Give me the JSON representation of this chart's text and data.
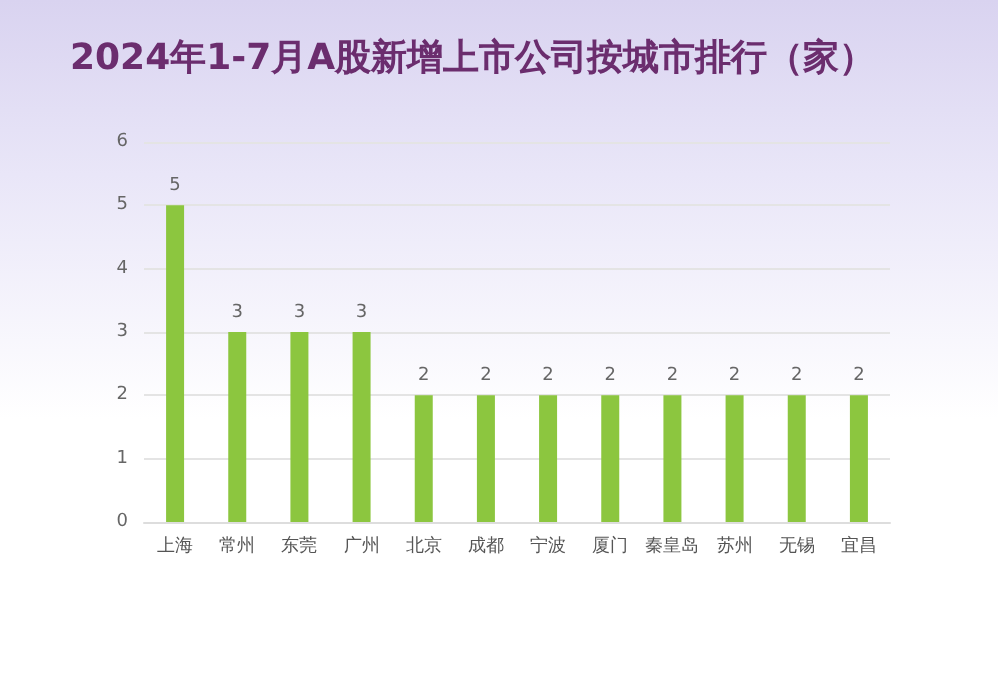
{
  "chart_data": {
    "type": "bar",
    "title": "2024年1-7月A股新增上市公司按城市排行（家）",
    "categories": [
      "上海",
      "常州",
      "东莞",
      "广州",
      "北京",
      "成都",
      "宁波",
      "厦门",
      "秦皇岛",
      "苏州",
      "无锡",
      "宜昌"
    ],
    "values": [
      5,
      3,
      3,
      3,
      2,
      2,
      2,
      2,
      2,
      2,
      2,
      2
    ],
    "color": "#8cc63f",
    "ylim": [
      0,
      6
    ],
    "yticks": [
      0,
      1,
      2,
      3,
      4,
      5,
      6
    ],
    "grid": "y",
    "data_labels": true
  }
}
